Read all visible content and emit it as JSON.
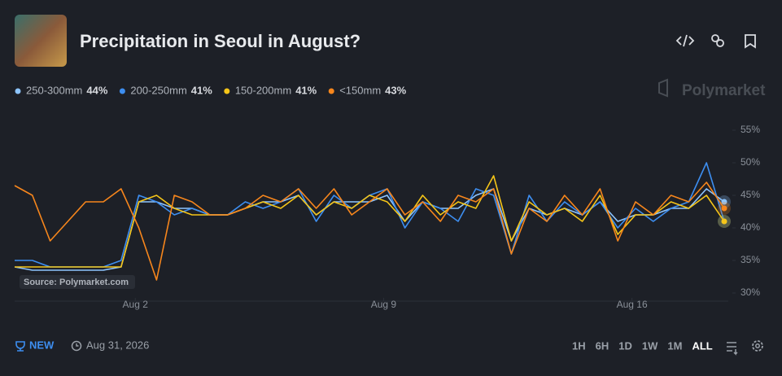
{
  "chart_data": {
    "type": "line",
    "title": "Precipitation in Seoul in August?",
    "watermark": "Polymarket",
    "source": "Source: Polymarket.com",
    "badge": "NEW",
    "end_date": "Aug 31, 2026",
    "ranges": [
      "1H",
      "6H",
      "1D",
      "1W",
      "1M",
      "ALL"
    ],
    "x": [
      -1.4,
      -0.9,
      -0.4,
      0.1,
      0.6,
      1.1,
      1.6,
      2.1,
      2.6,
      3.1,
      3.6,
      4.1,
      4.6,
      5.1,
      5.6,
      6.1,
      6.6,
      7.1,
      7.6,
      8.1,
      8.6,
      9.1,
      9.6,
      10.1,
      10.6,
      11.1,
      11.6,
      12.1,
      12.6,
      13.1,
      13.6,
      14.1,
      14.6,
      15.1,
      15.6,
      16.1,
      16.6,
      17.1,
      17.6,
      18.1,
      18.6
    ],
    "xlim": [
      -1.4,
      18.6
    ],
    "xticks": [
      {
        "value": 2,
        "label": "Aug 2"
      },
      {
        "value": 9,
        "label": "Aug 9"
      },
      {
        "value": 16,
        "label": "Aug 16"
      }
    ],
    "ylim": [
      30,
      56.5
    ],
    "yticks": [
      {
        "value": 30,
        "label": "30%"
      },
      {
        "value": 35,
        "label": "35%"
      },
      {
        "value": 40,
        "label": "40%"
      },
      {
        "value": 45,
        "label": "45%"
      },
      {
        "value": 50,
        "label": "50%"
      },
      {
        "value": 55,
        "label": "55%"
      }
    ],
    "series": [
      {
        "name": "250-300mm",
        "current_label": "44%",
        "color": "#8ec5ff",
        "values": [
          34,
          33.5,
          33.5,
          33.5,
          33.5,
          33.5,
          34,
          44,
          44,
          43,
          43,
          42,
          42,
          43,
          44,
          44,
          45,
          42,
          44,
          44,
          44,
          45,
          41,
          44,
          43,
          43,
          45,
          46,
          38,
          43,
          42,
          43,
          42,
          44,
          41,
          42,
          42,
          43,
          43,
          46,
          44
        ]
      },
      {
        "name": "200-250mm",
        "current_label": "41%",
        "color": "#3d8ef0",
        "values": [
          35,
          35,
          34,
          34,
          34,
          34,
          35,
          45,
          44,
          42,
          43,
          42,
          42,
          44,
          43,
          44,
          46,
          41,
          45,
          43,
          45,
          46,
          40,
          44,
          43,
          41,
          46,
          45,
          36,
          45,
          41,
          44,
          42,
          44,
          40,
          43,
          41,
          43,
          44,
          50,
          41
        ]
      },
      {
        "name": "150-200mm",
        "current_label": "41%",
        "color": "#f5c518",
        "values": [
          34,
          34,
          34,
          34,
          34,
          34,
          34,
          44,
          45,
          43,
          42,
          42,
          42,
          43,
          44,
          43,
          45,
          42,
          44,
          43,
          45,
          44,
          41,
          45,
          42,
          44,
          43,
          48,
          38,
          44,
          42,
          43,
          41,
          45,
          39,
          42,
          42,
          44,
          43,
          45,
          41
        ]
      },
      {
        "name": "<150mm",
        "current_label": "43%",
        "color": "#f7861c",
        "values": [
          46.5,
          45,
          38,
          41,
          44,
          44,
          46,
          40,
          32,
          45,
          44,
          42,
          42,
          43,
          45,
          44,
          46,
          43,
          46,
          42,
          44,
          46,
          42,
          44,
          41,
          45,
          44,
          46,
          36,
          43,
          41,
          45,
          42,
          46,
          38,
          44,
          42,
          45,
          44,
          47,
          43
        ]
      }
    ]
  }
}
